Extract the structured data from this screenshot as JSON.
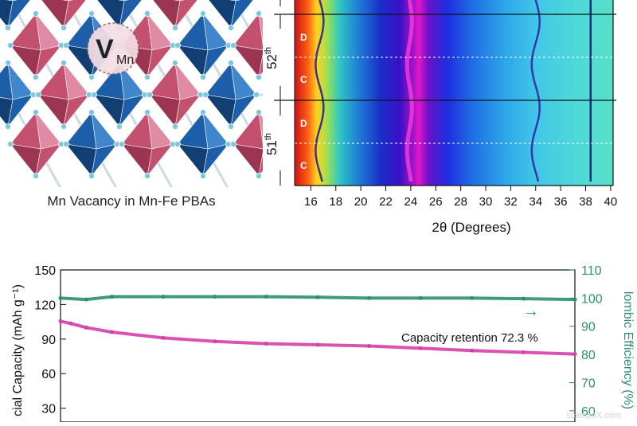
{
  "crystal": {
    "caption": "Mn Vacancy in Mn-Fe PBAs",
    "vacancy_label_main": "V",
    "vacancy_label_sub": "Mn",
    "colors": {
      "fe_octahedron": "#1c5fa8",
      "mn_octahedron": "#c4506f",
      "ligand": "#7fc6e0"
    }
  },
  "watermark": "scienceX.com",
  "chart_data": [
    {
      "type": "heatmap",
      "title": "",
      "xlabel": "2θ (Degrees)",
      "ylabel": "",
      "xlim": [
        14.7,
        40.2
      ],
      "xticks": [
        "16",
        "18",
        "20",
        "22",
        "24",
        "26",
        "28",
        "30",
        "32",
        "34",
        "36",
        "38",
        "40"
      ],
      "cycle_labels": [
        {
          "label": "52",
          "suffix": "th"
        },
        {
          "label": "51",
          "suffix": "th"
        }
      ],
      "state_labels": [
        "D",
        "C",
        "D",
        "C"
      ],
      "peak_positions": [
        16.7,
        23.9,
        34.0,
        38.4
      ]
    },
    {
      "type": "scatter",
      "title": "",
      "xlabel": "",
      "ylabel": "cial Capacity (mAh g⁻¹)",
      "y2label": "lombic Efficiency (%)",
      "ylim": [
        18,
        150
      ],
      "y2lim": [
        56,
        110
      ],
      "yticks": [
        "150",
        "120",
        "90",
        "60",
        "30"
      ],
      "y2ticks": [
        "110",
        "100",
        "90",
        "80",
        "70",
        "60"
      ],
      "annotation": "Capacity retention 72.3 %",
      "arrow": "→",
      "colors": {
        "capacity": "#d63fa7",
        "efficiency": "#2e8f6b",
        "axis_right": "#2e8f6b"
      },
      "series": [
        {
          "axis": "left",
          "x": [
            0,
            0.02,
            0.05,
            0.1,
            0.2,
            0.3,
            0.4,
            0.5,
            0.6,
            0.7,
            0.8,
            0.9,
            1.0
          ],
          "values": [
            105.5,
            103.5,
            100,
            96,
            91,
            88,
            86,
            85,
            84,
            82,
            80,
            78.5,
            77
          ]
        },
        {
          "axis": "right",
          "x": [
            0,
            0.05,
            0.1,
            0.2,
            0.3,
            0.4,
            0.5,
            0.6,
            0.7,
            0.8,
            0.9,
            1.0
          ],
          "values": [
            100,
            99.5,
            100.5,
            100.5,
            100.5,
            100.5,
            100.3,
            100,
            100,
            100,
            99.8,
            99.5
          ]
        }
      ]
    }
  ]
}
